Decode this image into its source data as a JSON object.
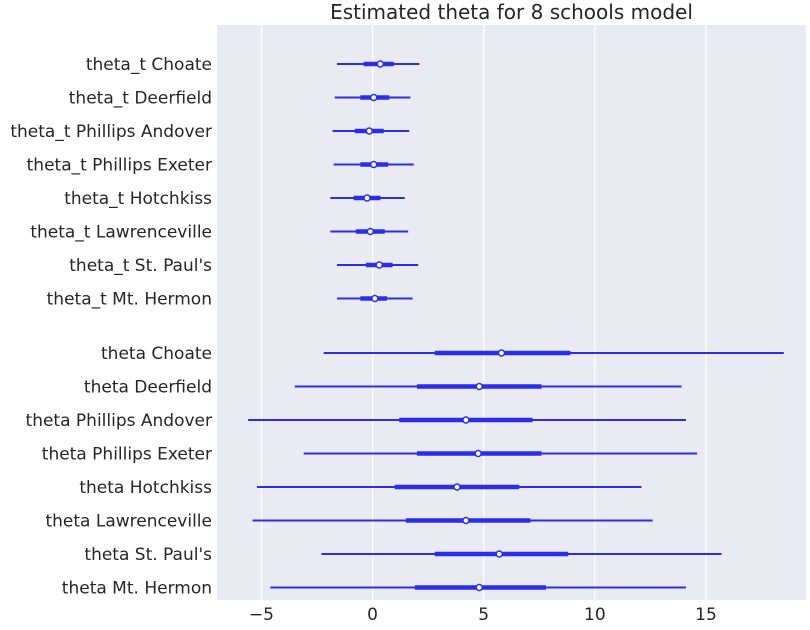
{
  "chart_data": {
    "type": "forest",
    "title": "Estimated theta for 8 schools model",
    "xlabel": "",
    "ylabel": "",
    "xlim": [
      -7,
      19.5
    ],
    "xticks": [
      -5,
      0,
      5,
      10,
      15
    ],
    "xtick_labels": [
      "−5",
      "0",
      "5",
      "10",
      "15"
    ],
    "grid": true,
    "colors": {
      "panel_background": "#eaeaf2",
      "grid": "#ffffff",
      "interval": "#2a2eec",
      "point_fill": "#ffffff"
    },
    "groups": [
      {
        "rows": [
          {
            "label": "theta_t Choate",
            "hdi_low": -1.6,
            "iqr_low": -0.4,
            "median": 0.35,
            "iqr_high": 0.95,
            "hdi_high": 2.1
          },
          {
            "label": "theta_t Deerfield",
            "hdi_low": -1.7,
            "iqr_low": -0.55,
            "median": 0.05,
            "iqr_high": 0.75,
            "hdi_high": 1.7
          },
          {
            "label": "theta_t Phillips Andover",
            "hdi_low": -1.8,
            "iqr_low": -0.8,
            "median": -0.15,
            "iqr_high": 0.5,
            "hdi_high": 1.65
          },
          {
            "label": "theta_t Phillips Exeter",
            "hdi_low": -1.75,
            "iqr_low": -0.55,
            "median": 0.05,
            "iqr_high": 0.7,
            "hdi_high": 1.85
          },
          {
            "label": "theta_t Hotchkiss",
            "hdi_low": -1.9,
            "iqr_low": -0.85,
            "median": -0.25,
            "iqr_high": 0.35,
            "hdi_high": 1.45
          },
          {
            "label": "theta_t Lawrenceville",
            "hdi_low": -1.9,
            "iqr_low": -0.75,
            "median": -0.1,
            "iqr_high": 0.55,
            "hdi_high": 1.6
          },
          {
            "label": "theta_t St. Paul's",
            "hdi_low": -1.6,
            "iqr_low": -0.3,
            "median": 0.3,
            "iqr_high": 0.9,
            "hdi_high": 2.05
          },
          {
            "label": "theta_t Mt. Hermon",
            "hdi_low": -1.6,
            "iqr_low": -0.55,
            "median": 0.1,
            "iqr_high": 0.65,
            "hdi_high": 1.8
          }
        ]
      },
      {
        "rows": [
          {
            "label": "theta Choate",
            "hdi_low": -2.2,
            "iqr_low": 2.8,
            "median": 5.8,
            "iqr_high": 8.9,
            "hdi_high": 18.5
          },
          {
            "label": "theta Deerfield",
            "hdi_low": -3.5,
            "iqr_low": 2.0,
            "median": 4.8,
            "iqr_high": 7.6,
            "hdi_high": 13.9
          },
          {
            "label": "theta Phillips Andover",
            "hdi_low": -5.6,
            "iqr_low": 1.2,
            "median": 4.2,
            "iqr_high": 7.2,
            "hdi_high": 14.1
          },
          {
            "label": "theta Phillips Exeter",
            "hdi_low": -3.1,
            "iqr_low": 2.0,
            "median": 4.75,
            "iqr_high": 7.6,
            "hdi_high": 14.6
          },
          {
            "label": "theta Hotchkiss",
            "hdi_low": -5.2,
            "iqr_low": 1.0,
            "median": 3.8,
            "iqr_high": 6.6,
            "hdi_high": 12.1
          },
          {
            "label": "theta Lawrenceville",
            "hdi_low": -5.4,
            "iqr_low": 1.5,
            "median": 4.2,
            "iqr_high": 7.1,
            "hdi_high": 12.6
          },
          {
            "label": "theta St. Paul's",
            "hdi_low": -2.3,
            "iqr_low": 2.8,
            "median": 5.7,
            "iqr_high": 8.8,
            "hdi_high": 15.7
          },
          {
            "label": "theta Mt. Hermon",
            "hdi_low": -4.6,
            "iqr_low": 1.9,
            "median": 4.8,
            "iqr_high": 7.8,
            "hdi_high": 14.1
          }
        ]
      }
    ]
  }
}
